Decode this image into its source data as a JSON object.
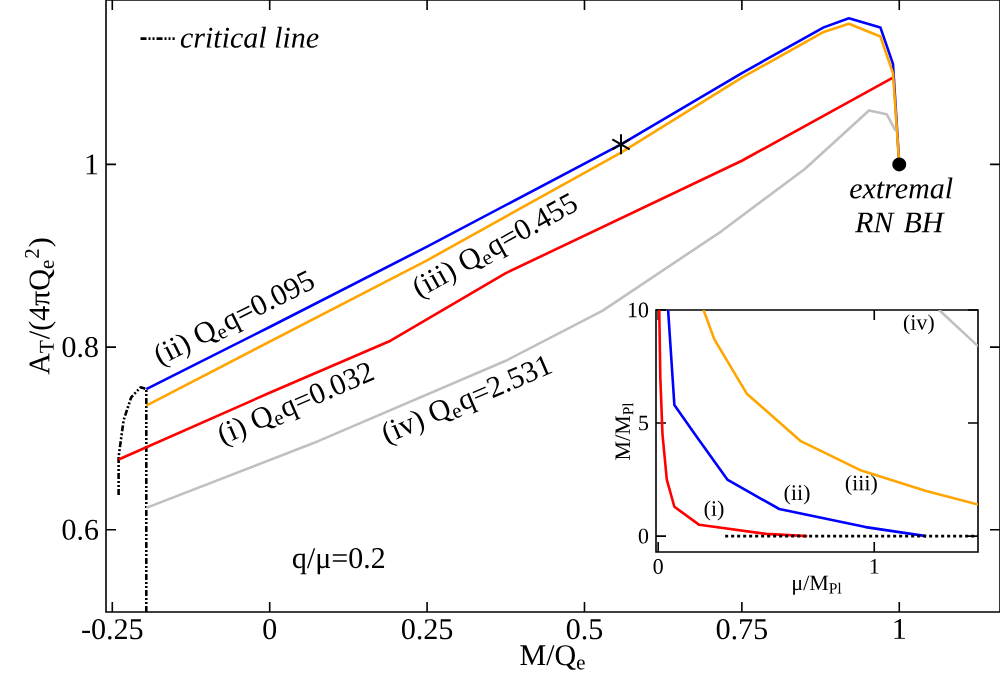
{
  "chart_data": [
    {
      "type": "line",
      "xlabel": "M/Q$_{e}$",
      "ylabel": "A$_{T}$/(4πQ$_{e}$$^{2}$)",
      "xlim": [
        -0.26,
        1.16
      ],
      "ylim": [
        0.51,
        1.18
      ],
      "xticks": [
        -0.25,
        0,
        0.25,
        0.5,
        0.75,
        1
      ],
      "yticks": [
        0.6,
        0.8,
        1
      ],
      "legend": "top left",
      "series": [
        {
          "name": "critical line",
          "color": "#000000",
          "line_style": "dashed",
          "x": [
            -0.24,
            -0.24,
            -0.232,
            -0.22,
            -0.205,
            -0.196,
            -0.196
          ],
          "values": [
            0.638,
            0.68,
            0.72,
            0.745,
            0.756,
            0.754,
            0.51
          ]
        },
        {
          "name": "(i) Q$_{e}$q=0.032",
          "color": "#ff0000",
          "x": [
            -0.24,
            0,
            0.192,
            0.375,
            0.75,
            0.99
          ],
          "values": [
            0.677,
            0.75,
            0.807,
            0.881,
            1.004,
            1.095
          ]
        },
        {
          "name": "(ii) Q$_{e}$q=0.095",
          "color": "#0000ff",
          "x": [
            -0.196,
            0,
            0.25,
            0.558,
            0.75,
            0.88,
            0.92,
            0.97,
            0.99,
            1.0
          ],
          "values": [
            0.754,
            0.822,
            0.91,
            1.022,
            1.1,
            1.15,
            1.16,
            1.15,
            1.11,
            1.0
          ]
        },
        {
          "name": "(iii) Q$_{e}$q=0.455",
          "color": "#ffa500",
          "x": [
            -0.196,
            0.25,
            0.558,
            0.75,
            0.88,
            0.92,
            0.97,
            0.99,
            1.0
          ],
          "values": [
            0.736,
            0.895,
            1.013,
            1.095,
            1.145,
            1.154,
            1.14,
            1.1,
            1.0
          ]
        },
        {
          "name": "(iv) Q$_{e}$q=2.531",
          "color": "#c0c0c0",
          "x": [
            -0.196,
            0.077,
            0.375,
            0.529,
            0.718,
            0.85,
            0.952,
            0.98,
            0.994
          ],
          "values": [
            0.624,
            0.697,
            0.785,
            0.84,
            0.927,
            0.995,
            1.059,
            1.055,
            1.037
          ]
        },
        {
          "type": "scatter",
          "marker": "cross",
          "color": "#000000",
          "x": [
            0.558
          ],
          "values": [
            1.022
          ]
        },
        {
          "type": "scatter",
          "marker": "circle",
          "color": "#000000",
          "x": [
            1.0
          ],
          "values": [
            1.0
          ]
        }
      ],
      "annotations": [
        "q/μ=0.2",
        {
          "text": "extremal RN BH",
          "x": 1.0,
          "y": 1.0
        }
      ]
    },
    {
      "type": "line",
      "xlabel": "μ/M$_{Pl}$",
      "ylabel": "M/M$_{Pl}$",
      "xlim": [
        -0.01,
        1.48
      ],
      "ylim": [
        -0.7,
        10
      ],
      "xticks": [
        0,
        1
      ],
      "yticks": [
        0,
        5,
        10
      ],
      "series": [
        {
          "name": "(i)",
          "color": "#ff0000",
          "x": [
            0.005,
            0.01,
            0.02,
            0.04,
            0.075,
            0.19,
            0.5,
            0.69
          ],
          "values": [
            10,
            7,
            4.5,
            2.5,
            1.3,
            0.5,
            0.1,
            0
          ]
        },
        {
          "name": "(ii)",
          "color": "#0000ff",
          "x": [
            0.046,
            0.075,
            0.17,
            0.32,
            0.56,
            0.96,
            1.24
          ],
          "values": [
            10,
            5.8,
            4.5,
            2.5,
            1.2,
            0.4,
            0
          ]
        },
        {
          "name": "(iii)",
          "color": "#ffa500",
          "x": [
            0.21,
            0.26,
            0.41,
            0.66,
            0.94,
            1.24,
            1.48
          ],
          "values": [
            10,
            8.7,
            6.3,
            4.2,
            2.9,
            2.0,
            1.4
          ]
        },
        {
          "name": "(iv)",
          "color": "#c0c0c0",
          "x": [
            1.3,
            1.48
          ],
          "values": [
            10,
            8.4
          ]
        },
        {
          "color": "#000000",
          "line_style": "dotted",
          "x": [
            0.31,
            1.48
          ],
          "values": [
            0,
            0
          ]
        }
      ]
    }
  ]
}
